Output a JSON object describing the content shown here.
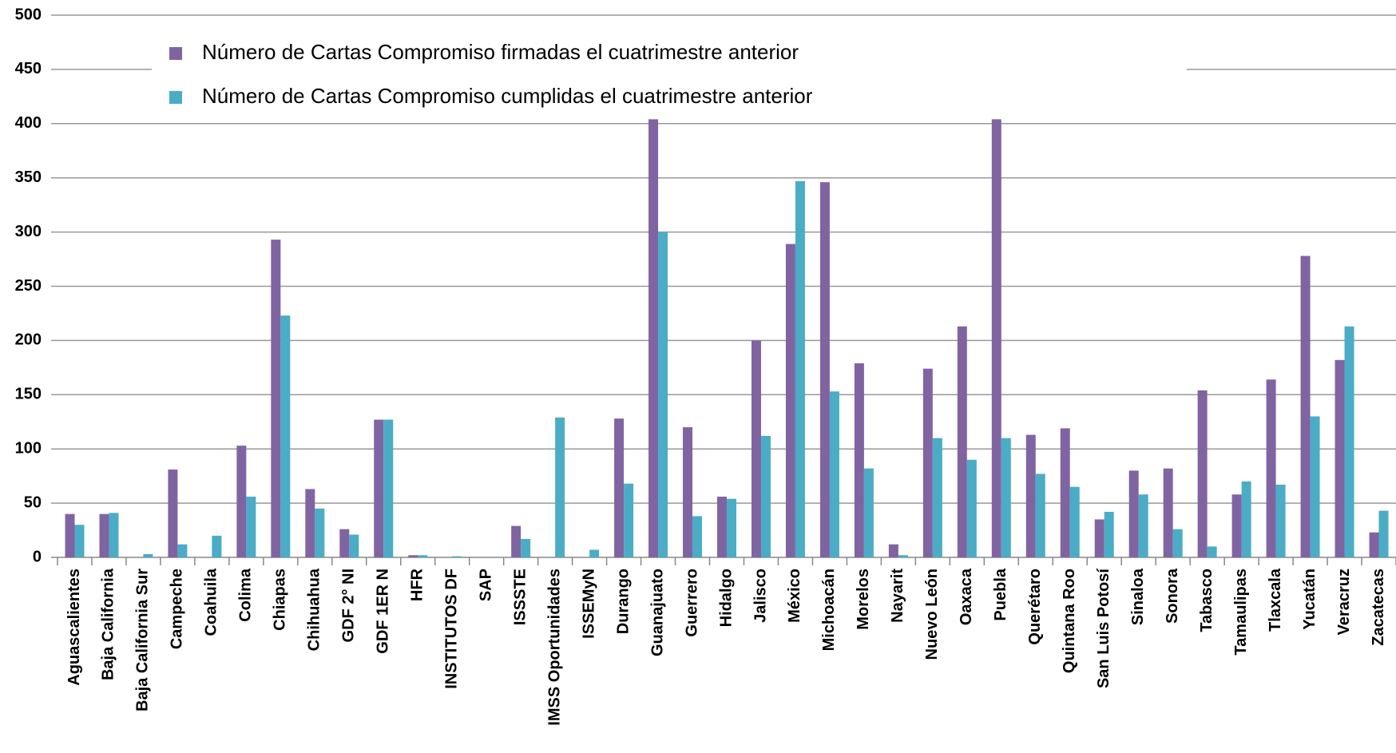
{
  "chart_data": {
    "type": "bar",
    "categories": [
      "Aguascalientes",
      "Baja California",
      "Baja California Sur",
      "Campeche",
      "Coahuila",
      "Colima",
      "Chiapas",
      "Chihuahua",
      "GDF 2° NI",
      "GDF 1ER N",
      "HFR",
      "INSTITUTOS DF",
      "SAP",
      "ISSSTE",
      "IMSS Oportunidades",
      "ISSEMyN",
      "Durango",
      "Guanajuato",
      "Guerrero",
      "Hidalgo",
      "Jalisco",
      "México",
      "Michoacán",
      "Morelos",
      "Nayarit",
      "Nuevo León",
      "Oaxaca",
      "Puebla",
      "Querétaro",
      "Quintana Roo",
      "San Luis Potosí",
      "Sinaloa",
      "Sonora",
      "Tabasco",
      "Tamaulipas",
      "Tlaxcala",
      "Yucatán",
      "Veracruz",
      "Zacatecas"
    ],
    "series": [
      {
        "name": "Número de Cartas Compromiso firmadas el cuatrimestre anterior",
        "color": "#8064a2",
        "values": [
          40,
          40,
          0,
          81,
          0,
          103,
          293,
          63,
          26,
          127,
          2,
          0,
          0,
          29,
          0,
          0,
          128,
          404,
          120,
          56,
          200,
          289,
          346,
          179,
          12,
          174,
          213,
          404,
          113,
          119,
          35,
          80,
          82,
          154,
          58,
          164,
          278,
          182,
          23
        ]
      },
      {
        "name": "Número de Cartas Compromiso cumplidas el cuatrimestre anterior",
        "color": "#4bacc6",
        "values": [
          30,
          41,
          3,
          12,
          20,
          56,
          223,
          45,
          21,
          127,
          2,
          1,
          0,
          17,
          129,
          7,
          68,
          300,
          38,
          54,
          112,
          347,
          153,
          82,
          2,
          110,
          90,
          110,
          77,
          65,
          42,
          58,
          26,
          10,
          70,
          67,
          130,
          213,
          43
        ]
      }
    ],
    "ylim": [
      0,
      500
    ],
    "yticks": [
      0,
      50,
      100,
      150,
      200,
      250,
      300,
      350,
      400,
      450,
      500
    ],
    "grid": true
  }
}
